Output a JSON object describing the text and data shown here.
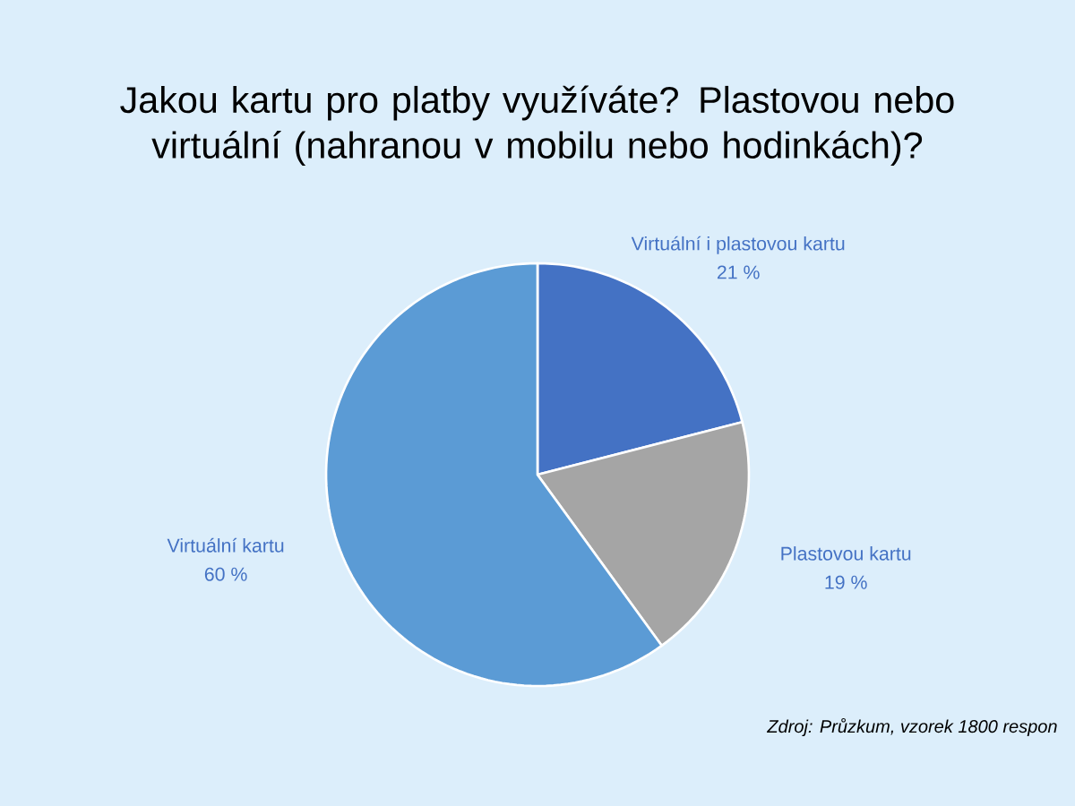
{
  "chart_data": {
    "type": "pie",
    "title": "Jakou kartu pro platby využíváte? Plastovou nebo virtuální (nahranou v mobilu nebo hodinkách)?",
    "categories": [
      "Virtuální i plastovou kartu",
      "Plastovou kartu",
      "Virtuální kartu"
    ],
    "values": [
      21,
      19,
      60
    ],
    "value_labels": [
      "21 %",
      "19 %",
      "60 %"
    ],
    "colors": [
      "#4472c4",
      "#a5a5a5",
      "#5b9bd5"
    ],
    "annotations": [
      "Zdroj: Průzkum, vzorek 1800 respon"
    ]
  }
}
